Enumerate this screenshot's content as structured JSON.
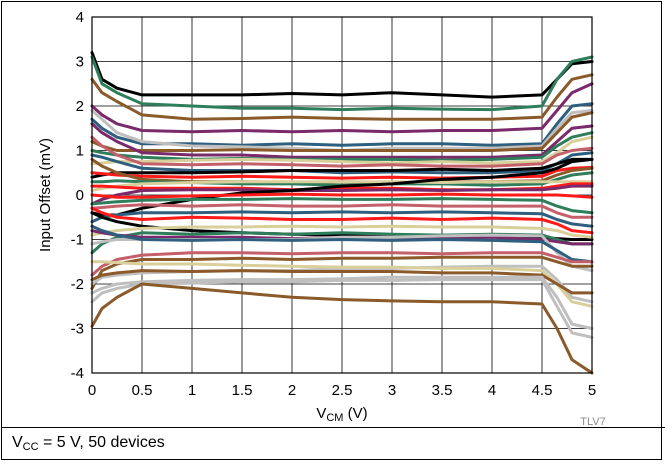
{
  "chart_data": {
    "type": "line",
    "xlabel": {
      "main": "V",
      "sub": "CM",
      "rest": " (V)"
    },
    "ylabel": "Input Offset (mV)",
    "xlim": [
      0,
      5
    ],
    "ylim": [
      -4,
      4
    ],
    "x_ticks": [
      "0",
      "0.5",
      "1",
      "1.5",
      "2",
      "2.5",
      "3",
      "3.5",
      "4",
      "4.5",
      "5"
    ],
    "y_ticks": [
      "4",
      "3",
      "2",
      "1",
      "0",
      "-1",
      "-2",
      "-3",
      "-4"
    ],
    "grid": true,
    "tag": "TLV7",
    "x": [
      0,
      0.1,
      0.25,
      0.5,
      1,
      1.5,
      2,
      2.5,
      3,
      3.5,
      4,
      4.5,
      4.65,
      4.8,
      5
    ],
    "series": [
      {
        "color": "#000000",
        "values": [
          3.2,
          2.6,
          2.4,
          2.25,
          2.25,
          2.25,
          2.28,
          2.25,
          2.3,
          2.25,
          2.2,
          2.25,
          2.6,
          2.95,
          3.0
        ]
      },
      {
        "color": "#2e7d5b",
        "values": [
          3.1,
          2.5,
          2.3,
          2.05,
          2.0,
          1.95,
          1.95,
          1.92,
          1.95,
          1.93,
          1.92,
          2.0,
          2.6,
          3.0,
          3.1
        ]
      },
      {
        "color": "#8b5a2b",
        "values": [
          2.6,
          2.3,
          2.1,
          1.8,
          1.7,
          1.72,
          1.75,
          1.72,
          1.7,
          1.7,
          1.7,
          1.75,
          2.2,
          2.6,
          2.7
        ]
      },
      {
        "color": "#7a2a6a",
        "values": [
          2.0,
          1.8,
          1.6,
          1.45,
          1.42,
          1.45,
          1.42,
          1.45,
          1.42,
          1.45,
          1.45,
          1.5,
          1.9,
          2.3,
          2.5
        ]
      },
      {
        "color": "#2f5f7f",
        "values": [
          1.7,
          1.5,
          1.3,
          1.15,
          1.15,
          1.12,
          1.15,
          1.12,
          1.15,
          1.15,
          1.12,
          1.15,
          1.6,
          2.0,
          2.05
        ]
      },
      {
        "color": "#bfbfbf",
        "values": [
          1.9,
          1.7,
          1.4,
          1.2,
          1.1,
          1.08,
          1.05,
          1.0,
          1.05,
          1.05,
          1.05,
          1.1,
          1.5,
          1.85,
          1.9
        ]
      },
      {
        "color": "#8b5a2b",
        "values": [
          1.2,
          1.1,
          1.0,
          1.0,
          1.0,
          1.02,
          1.0,
          1.0,
          1.0,
          1.0,
          1.0,
          1.05,
          1.4,
          1.75,
          1.85
        ]
      },
      {
        "color": "#7a2a6a",
        "values": [
          1.6,
          1.4,
          1.2,
          0.95,
          0.9,
          0.9,
          0.85,
          0.85,
          0.85,
          0.85,
          0.85,
          0.9,
          1.2,
          1.5,
          1.55
        ]
      },
      {
        "color": "#2e7d5b",
        "values": [
          1.0,
          0.95,
          0.9,
          0.85,
          0.8,
          0.82,
          0.8,
          0.8,
          0.8,
          0.78,
          0.8,
          0.85,
          1.1,
          1.3,
          1.4
        ]
      },
      {
        "color": "#d8cf9a",
        "values": [
          0.7,
          0.72,
          0.75,
          0.75,
          0.78,
          0.8,
          0.78,
          0.75,
          0.72,
          0.75,
          0.72,
          0.75,
          0.95,
          1.2,
          1.3
        ]
      },
      {
        "color": "#c4606a",
        "values": [
          1.3,
          1.1,
          0.9,
          0.7,
          0.68,
          0.7,
          0.68,
          0.65,
          0.68,
          0.65,
          0.65,
          0.7,
          0.9,
          1.0,
          1.05
        ]
      },
      {
        "color": "#2f5f7f",
        "values": [
          0.9,
          0.85,
          0.75,
          0.6,
          0.55,
          0.55,
          0.55,
          0.5,
          0.52,
          0.5,
          0.5,
          0.55,
          0.7,
          0.9,
          0.95
        ]
      },
      {
        "color": "#000000",
        "values": [
          0.4,
          0.45,
          0.5,
          0.5,
          0.5,
          0.52,
          0.55,
          0.55,
          0.55,
          0.58,
          0.55,
          0.6,
          0.7,
          0.8,
          0.8
        ]
      },
      {
        "color": "#ff1a1a",
        "values": [
          0.5,
          0.48,
          0.45,
          0.42,
          0.4,
          0.42,
          0.4,
          0.38,
          0.4,
          0.38,
          0.4,
          0.42,
          0.55,
          0.6,
          0.62
        ]
      },
      {
        "color": "#8b5a2b",
        "values": [
          0.8,
          0.65,
          0.5,
          0.35,
          0.3,
          0.3,
          0.28,
          0.3,
          0.28,
          0.3,
          0.3,
          0.32,
          0.45,
          0.55,
          0.6
        ]
      },
      {
        "color": "#2e7d5b",
        "values": [
          0.3,
          0.3,
          0.32,
          0.3,
          0.28,
          0.25,
          0.25,
          0.22,
          0.25,
          0.25,
          0.22,
          0.25,
          0.35,
          0.45,
          0.5
        ]
      },
      {
        "color": "#d8cf9a",
        "values": [
          0.1,
          0.15,
          0.2,
          0.25,
          0.28,
          0.3,
          0.3,
          0.3,
          0.3,
          0.28,
          0.3,
          0.3,
          0.3,
          0.3,
          0.3
        ]
      },
      {
        "color": "#ff1a1a",
        "values": [
          0.2,
          0.2,
          0.18,
          0.15,
          0.15,
          0.15,
          0.12,
          0.15,
          0.15,
          0.12,
          0.12,
          0.15,
          0.2,
          0.25,
          0.25
        ]
      },
      {
        "color": "#7a2a6a",
        "values": [
          -0.2,
          -0.1,
          0.0,
          0.1,
          0.12,
          0.12,
          0.1,
          0.1,
          0.12,
          0.1,
          0.12,
          0.12,
          0.15,
          0.2,
          0.2
        ]
      },
      {
        "color": "#000000",
        "values": [
          -0.4,
          -0.45,
          -0.45,
          -0.3,
          -0.1,
          0.05,
          0.1,
          0.2,
          0.25,
          0.35,
          0.4,
          0.5,
          0.6,
          0.75,
          0.8
        ]
      },
      {
        "color": "#ff1a1a",
        "values": [
          0.0,
          -0.02,
          -0.05,
          -0.05,
          -0.02,
          0.0,
          0.02,
          0.0,
          0.0,
          0.02,
          0.0,
          0.0,
          0.0,
          -0.02,
          -0.05
        ]
      },
      {
        "color": "#2e7d5b",
        "values": [
          -0.2,
          -0.18,
          -0.15,
          -0.12,
          -0.1,
          -0.1,
          -0.08,
          -0.1,
          -0.1,
          -0.08,
          -0.1,
          -0.12,
          -0.25,
          -0.35,
          -0.4
        ]
      },
      {
        "color": "#c4606a",
        "values": [
          -0.3,
          -0.28,
          -0.25,
          -0.22,
          -0.25,
          -0.22,
          -0.25,
          -0.25,
          -0.22,
          -0.25,
          -0.25,
          -0.25,
          -0.4,
          -0.5,
          -0.5
        ]
      },
      {
        "color": "#2f5f7f",
        "values": [
          -0.6,
          -0.5,
          -0.45,
          -0.4,
          -0.4,
          -0.38,
          -0.4,
          -0.38,
          -0.4,
          -0.38,
          -0.4,
          -0.42,
          -0.55,
          -0.65,
          -0.7
        ]
      },
      {
        "color": "#ff1a1a",
        "values": [
          -0.3,
          -0.4,
          -0.5,
          -0.55,
          -0.5,
          -0.52,
          -0.55,
          -0.55,
          -0.52,
          -0.55,
          -0.52,
          -0.55,
          -0.65,
          -0.8,
          -0.85
        ]
      },
      {
        "color": "#000000",
        "values": [
          -0.4,
          -0.5,
          -0.6,
          -0.7,
          -0.8,
          -0.85,
          -0.88,
          -0.9,
          -0.9,
          -0.92,
          -0.92,
          -0.95,
          -0.98,
          -1.0,
          -1.0
        ]
      },
      {
        "color": "#d8cf9a",
        "values": [
          -0.9,
          -0.85,
          -0.8,
          -0.75,
          -0.72,
          -0.72,
          -0.7,
          -0.72,
          -0.7,
          -0.72,
          -0.72,
          -0.75,
          -0.8,
          -0.9,
          -0.95
        ]
      },
      {
        "color": "#2e7d5b",
        "values": [
          -1.3,
          -1.1,
          -0.95,
          -0.85,
          -0.88,
          -0.85,
          -0.88,
          -0.85,
          -0.88,
          -0.9,
          -0.88,
          -0.9,
          -1.0,
          -1.1,
          -1.1
        ]
      },
      {
        "color": "#7a2a6a",
        "values": [
          -0.8,
          -0.85,
          -0.9,
          -0.95,
          -0.95,
          -0.95,
          -0.98,
          -0.95,
          -0.95,
          -0.98,
          -0.95,
          -1.0,
          -1.05,
          -1.1,
          -1.1
        ]
      },
      {
        "color": "#bfbfbf",
        "values": [
          -1.1,
          -1.05,
          -1.0,
          -1.0,
          -1.0,
          -1.0,
          -1.0,
          -0.95,
          -0.95,
          -0.92,
          -0.9,
          -0.92,
          -1.3,
          -1.6,
          -1.7
        ]
      },
      {
        "color": "#2f5f7f",
        "values": [
          -0.7,
          -0.8,
          -0.9,
          -1.0,
          -1.02,
          -1.0,
          -1.02,
          -1.0,
          -1.02,
          -1.0,
          -1.02,
          -1.05,
          -1.25,
          -1.45,
          -1.5
        ]
      },
      {
        "color": "#c4606a",
        "values": [
          -1.8,
          -1.6,
          -1.45,
          -1.35,
          -1.3,
          -1.3,
          -1.32,
          -1.3,
          -1.3,
          -1.32,
          -1.3,
          -1.3,
          -1.4,
          -1.5,
          -1.5
        ]
      },
      {
        "color": "#8b5a2b",
        "values": [
          -2.1,
          -1.7,
          -1.55,
          -1.45,
          -1.45,
          -1.42,
          -1.45,
          -1.42,
          -1.42,
          -1.4,
          -1.4,
          -1.4,
          -1.5,
          -1.6,
          -1.6
        ]
      },
      {
        "color": "#bfbfbf",
        "values": [
          -2.0,
          -1.85,
          -1.8,
          -1.75,
          -1.72,
          -1.7,
          -1.7,
          -1.65,
          -1.65,
          -1.62,
          -1.6,
          -1.6,
          -1.9,
          -2.3,
          -2.4
        ]
      },
      {
        "color": "#d8cf9a",
        "values": [
          -1.5,
          -1.5,
          -1.52,
          -1.55,
          -1.55,
          -1.58,
          -1.6,
          -1.62,
          -1.62,
          -1.65,
          -1.65,
          -1.7,
          -2.0,
          -2.4,
          -2.5
        ]
      },
      {
        "color": "#8b5a2b",
        "values": [
          -1.9,
          -1.8,
          -1.75,
          -1.7,
          -1.72,
          -1.7,
          -1.72,
          -1.72,
          -1.72,
          -1.75,
          -1.75,
          -1.8,
          -2.0,
          -2.2,
          -2.2
        ]
      },
      {
        "color": "#bfbfbf",
        "values": [
          -2.2,
          -2.1,
          -2.0,
          -1.95,
          -1.92,
          -1.9,
          -1.9,
          -1.88,
          -1.85,
          -1.85,
          -1.85,
          -1.85,
          -2.3,
          -2.9,
          -3.0
        ]
      },
      {
        "color": "#bfbfbf",
        "values": [
          -2.4,
          -2.2,
          -2.1,
          -2.0,
          -1.98,
          -1.95,
          -1.95,
          -1.92,
          -1.92,
          -1.9,
          -1.9,
          -1.9,
          -2.5,
          -3.1,
          -3.2
        ]
      },
      {
        "color": "#8b5a2b",
        "values": [
          -2.95,
          -2.55,
          -2.3,
          -2.0,
          -2.1,
          -2.2,
          -2.3,
          -2.35,
          -2.38,
          -2.4,
          -2.4,
          -2.45,
          -3.0,
          -3.7,
          -4.0
        ]
      }
    ]
  },
  "caption": {
    "sym": "V",
    "sub": "CC",
    "text": " = 5 V, 50 devices"
  }
}
